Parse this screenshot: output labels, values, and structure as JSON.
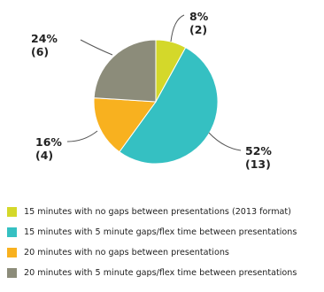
{
  "chart_data": {
    "type": "pie",
    "title": "",
    "legend_position": "bottom",
    "slices": [
      {
        "name": "15 minutes with no gaps between presentations (2013 format)",
        "value": 2,
        "percent_label": "8%",
        "count_label": "(2)",
        "color": "#d4d82a"
      },
      {
        "name": "15 minutes with 5 minute gaps/flex time between presentations",
        "value": 13,
        "percent_label": "52%",
        "count_label": "(13)",
        "color": "#35c0c2"
      },
      {
        "name": "20 minutes with no gaps between presentations",
        "value": 4,
        "percent_label": "16%",
        "count_label": "(4)",
        "color": "#f8b11f"
      },
      {
        "name": "20 minutes with 5 minute gaps/flex time between presentations",
        "value": 6,
        "percent_label": "24%",
        "count_label": "(6)",
        "color": "#8c8c7a"
      }
    ]
  }
}
